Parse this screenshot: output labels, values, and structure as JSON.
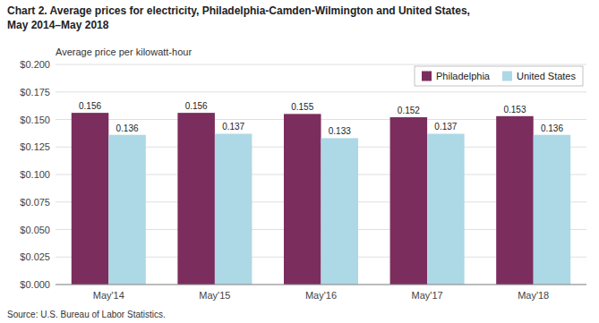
{
  "chart_data": {
    "type": "bar",
    "title": "Chart 2. Average prices for electricity, Philadelphia-Camden-Wilmington and United States,",
    "subtitle": "May 2014–May 2018",
    "y_label": "Average price per kilowatt-hour",
    "source": "Source: U.S. Bureau of Labor Statistics.",
    "categories": [
      "May'14",
      "May'15",
      "May'16",
      "May'17",
      "May'18"
    ],
    "series": [
      {
        "name": "Philadelphia",
        "color": "#7B2D5E",
        "values": [
          0.156,
          0.156,
          0.155,
          0.152,
          0.153
        ]
      },
      {
        "name": "United States",
        "color": "#ADD8E6",
        "values": [
          0.136,
          0.137,
          0.133,
          0.137,
          0.136
        ]
      }
    ],
    "ylim": [
      0,
      0.2
    ],
    "yticks": [
      {
        "value": 0,
        "label": "$0.000"
      },
      {
        "value": 0.025,
        "label": "$0.025"
      },
      {
        "value": 0.05,
        "label": "$0.050"
      },
      {
        "value": 0.075,
        "label": "$0.075"
      },
      {
        "value": 0.1,
        "label": "$0.100"
      },
      {
        "value": 0.125,
        "label": "$0.125"
      },
      {
        "value": 0.15,
        "label": "$0.150"
      },
      {
        "value": 0.175,
        "label": "$0.175"
      },
      {
        "value": 0.2,
        "label": "$0.200"
      }
    ],
    "grid": true,
    "legend": "upper-right",
    "data_labels": true
  }
}
